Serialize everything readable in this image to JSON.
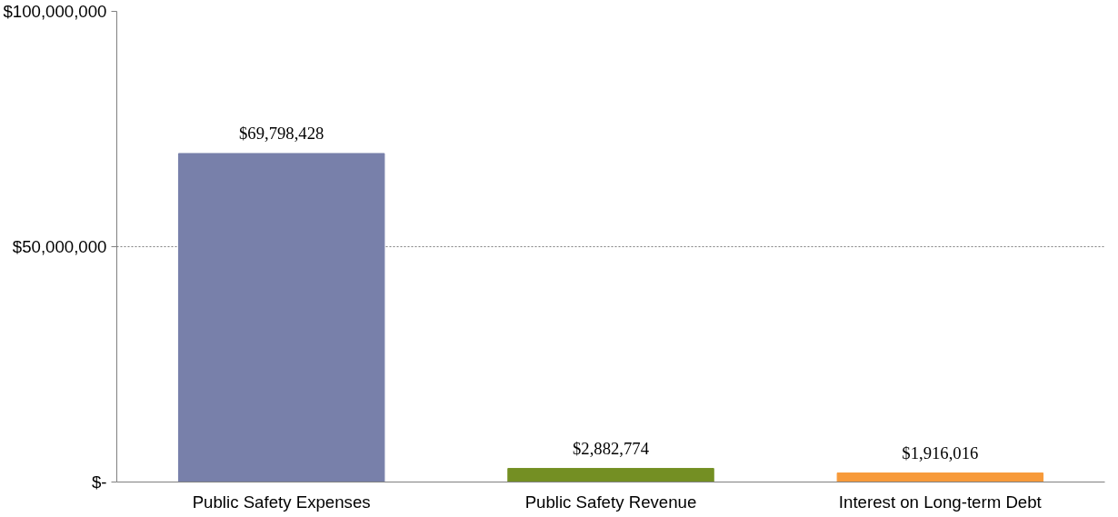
{
  "chart_data": {
    "type": "bar",
    "categories": [
      "Public Safety Expenses",
      "Public Safety Revenue",
      "Interest on Long-term Debt"
    ],
    "values": [
      69798428,
      2882774,
      1916016
    ],
    "colors": [
      "#7880aa",
      "#748f23",
      "#f79a3a"
    ],
    "value_labels": [
      "$69,798,428",
      "$2,882,774",
      "$1,916,016"
    ],
    "ylim": [
      0,
      100000000
    ],
    "yticks": [
      {
        "value": 0,
        "label": "$-"
      },
      {
        "value": 50000000,
        "label": "$50,000,000"
      },
      {
        "value": 100000000,
        "label": "$100,000,000"
      }
    ],
    "grid": "y"
  }
}
